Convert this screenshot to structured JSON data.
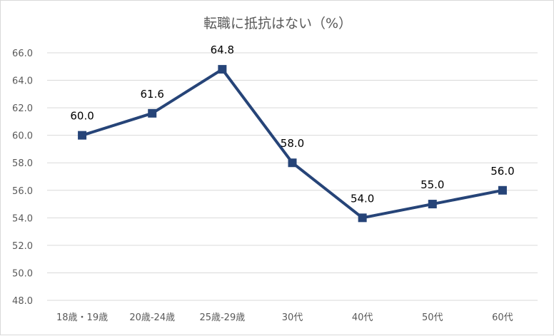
{
  "chart_data": {
    "type": "line",
    "title": "転職に抵抗はない（%）",
    "xlabel": "",
    "ylabel": "",
    "categories": [
      "18歳・19歳",
      "20歳-24歳",
      "25歳-29歳",
      "30代",
      "40代",
      "50代",
      "60代"
    ],
    "series": [
      {
        "values": [
          60.0,
          61.6,
          64.8,
          58.0,
          54.0,
          55.0,
          56.0
        ],
        "labels": [
          "60.0",
          "61.6",
          "64.8",
          "58.0",
          "54.0",
          "55.0",
          "56.0"
        ],
        "color": "#264478",
        "marker": "square"
      }
    ],
    "ylim": [
      48.0,
      66.0
    ],
    "yticks": [
      "48.0",
      "50.0",
      "52.0",
      "54.0",
      "56.0",
      "58.0",
      "60.0",
      "62.0",
      "64.0",
      "66.0"
    ],
    "grid": true,
    "gridColor": "#d9d9d9",
    "legend": "none"
  }
}
